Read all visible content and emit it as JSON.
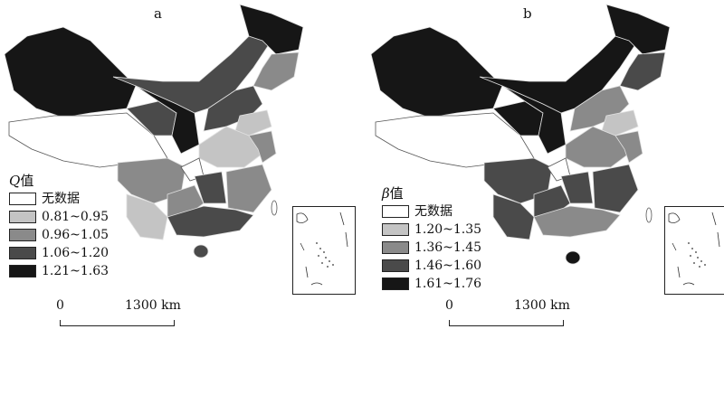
{
  "colors": {
    "no_data": "#ffffff",
    "class1": "#c4c4c4",
    "class2": "#8a8a8a",
    "class3": "#4a4a4a",
    "class4": "#161616",
    "outline": "#e8e8e8"
  },
  "panels": [
    {
      "label": "a",
      "legend_symbol": "Q",
      "legend_suffix": "值",
      "legend_items": [
        {
          "label": "无数据",
          "color": "#ffffff"
        },
        {
          "label": "0.81~0.95",
          "color": "#c4c4c4"
        },
        {
          "label": "0.96~1.05",
          "color": "#8a8a8a"
        },
        {
          "label": "1.06~1.20",
          "color": "#4a4a4a"
        },
        {
          "label": "1.21~1.63",
          "color": "#161616"
        }
      ],
      "scale": {
        "start": "0",
        "end": "1300 km"
      }
    },
    {
      "label": "b",
      "legend_symbol": "β",
      "legend_suffix": "值",
      "legend_items": [
        {
          "label": "无数据",
          "color": "#ffffff"
        },
        {
          "label": "1.20~1.35",
          "color": "#c4c4c4"
        },
        {
          "label": "1.36~1.45",
          "color": "#8a8a8a"
        },
        {
          "label": "1.46~1.60",
          "color": "#4a4a4a"
        },
        {
          "label": "1.61~1.76",
          "color": "#161616"
        }
      ],
      "scale": {
        "start": "0",
        "end": "1300 km"
      }
    }
  ]
}
